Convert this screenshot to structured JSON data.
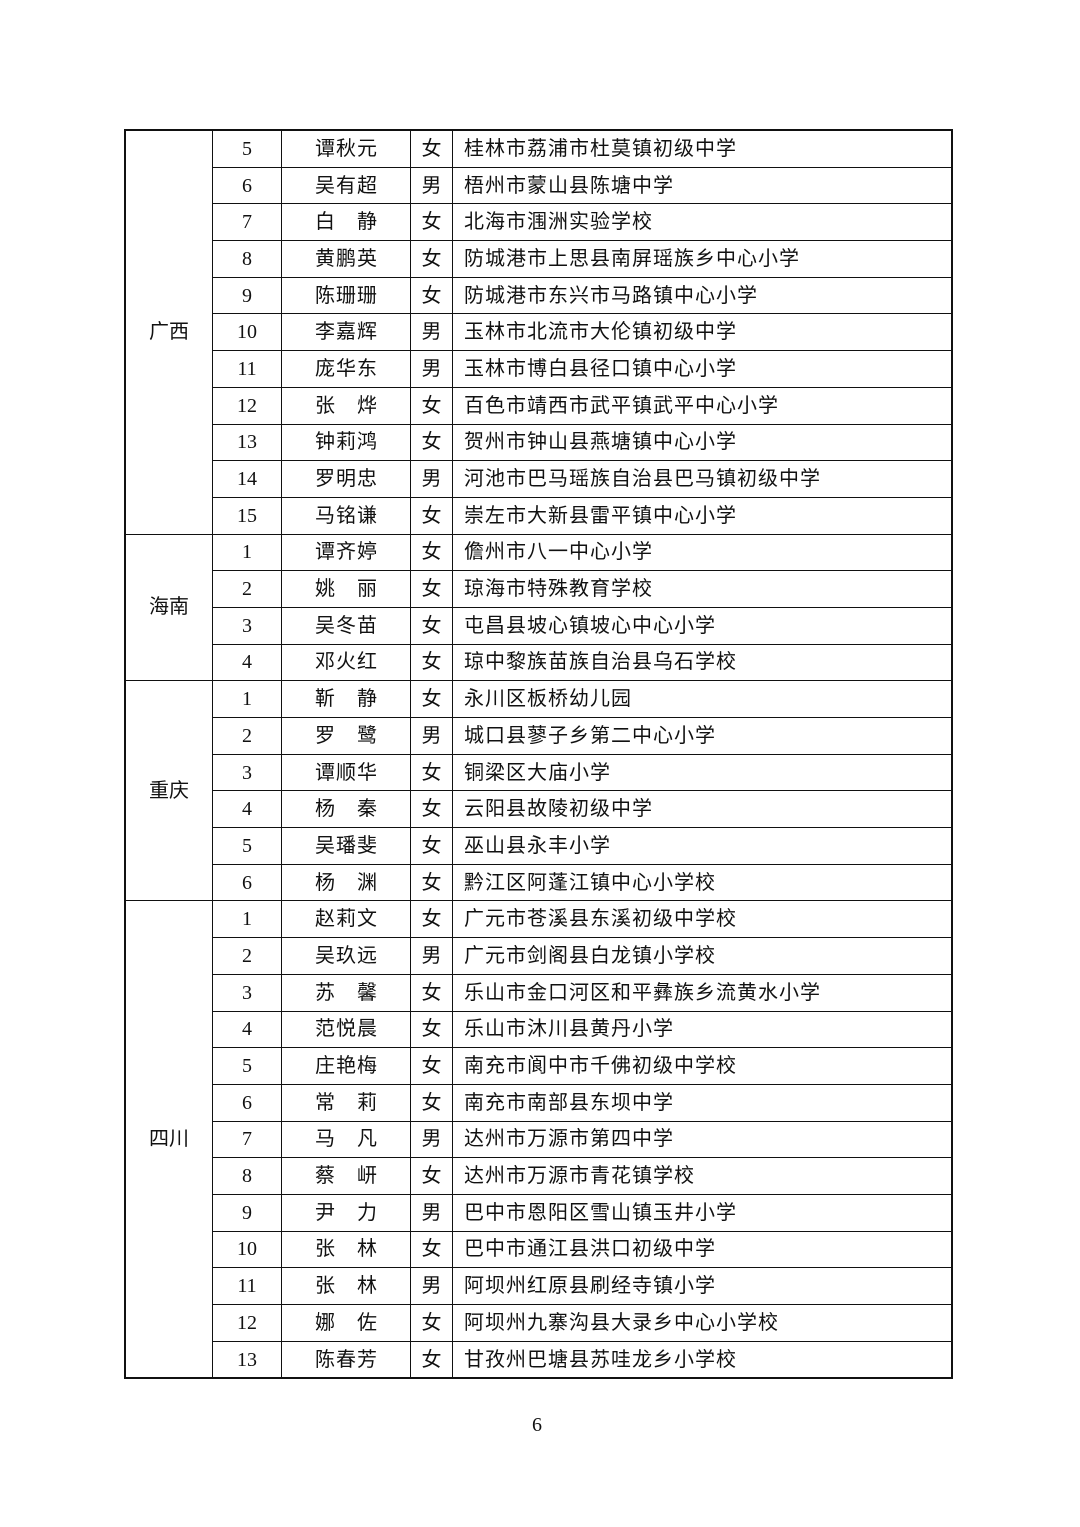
{
  "page_number": "6",
  "groups": [
    {
      "region": "广西",
      "rows": [
        [
          "5",
          "谭秋元",
          "女",
          "桂林市荔浦市杜莫镇初级中学"
        ],
        [
          "6",
          "吴有超",
          "男",
          "梧州市蒙山县陈塘中学"
        ],
        [
          "7",
          "白静",
          "女",
          "北海市涠洲实验学校"
        ],
        [
          "8",
          "黄鹏英",
          "女",
          "防城港市上思县南屏瑶族乡中心小学"
        ],
        [
          "9",
          "陈珊珊",
          "女",
          "防城港市东兴市马路镇中心小学"
        ],
        [
          "10",
          "李嘉辉",
          "男",
          "玉林市北流市大伦镇初级中学"
        ],
        [
          "11",
          "庞华东",
          "男",
          "玉林市博白县径口镇中心小学"
        ],
        [
          "12",
          "张烨",
          "女",
          "百色市靖西市武平镇武平中心小学"
        ],
        [
          "13",
          "钟莉鸿",
          "女",
          "贺州市钟山县燕塘镇中心小学"
        ],
        [
          "14",
          "罗明忠",
          "男",
          "河池市巴马瑶族自治县巴马镇初级中学"
        ],
        [
          "15",
          "马铭谦",
          "女",
          "崇左市大新县雷平镇中心小学"
        ]
      ]
    },
    {
      "region": "海南",
      "rows": [
        [
          "1",
          "谭齐婷",
          "女",
          "儋州市八一中心小学"
        ],
        [
          "2",
          "姚丽",
          "女",
          "琼海市特殊教育学校"
        ],
        [
          "3",
          "吴冬苗",
          "女",
          "屯昌县坡心镇坡心中心小学"
        ],
        [
          "4",
          "邓火红",
          "女",
          "琼中黎族苗族自治县乌石学校"
        ]
      ]
    },
    {
      "region": "重庆",
      "rows": [
        [
          "1",
          "靳静",
          "女",
          "永川区板桥幼儿园"
        ],
        [
          "2",
          "罗鹭",
          "男",
          "城口县蓼子乡第二中心小学"
        ],
        [
          "3",
          "谭顺华",
          "女",
          "铜梁区大庙小学"
        ],
        [
          "4",
          "杨秦",
          "女",
          "云阳县故陵初级中学"
        ],
        [
          "5",
          "吴璠斐",
          "女",
          "巫山县永丰小学"
        ],
        [
          "6",
          "杨渊",
          "女",
          "黔江区阿蓬江镇中心小学校"
        ]
      ]
    },
    {
      "region": "四川",
      "rows": [
        [
          "1",
          "赵莉文",
          "女",
          "广元市苍溪县东溪初级中学校"
        ],
        [
          "2",
          "吴玖远",
          "男",
          "广元市剑阁县白龙镇小学校"
        ],
        [
          "3",
          "苏馨",
          "女",
          "乐山市金口河区和平彝族乡流黄水小学"
        ],
        [
          "4",
          "范悦晨",
          "女",
          "乐山市沐川县黄丹小学"
        ],
        [
          "5",
          "庄艳梅",
          "女",
          "南充市阆中市千佛初级中学校"
        ],
        [
          "6",
          "常莉",
          "女",
          "南充市南部县东坝中学"
        ],
        [
          "7",
          "马凡",
          "男",
          "达州市万源市第四中学"
        ],
        [
          "8",
          "蔡岍",
          "女",
          "达州市万源市青花镇学校"
        ],
        [
          "9",
          "尹力",
          "男",
          "巴中市恩阳区雪山镇玉井小学"
        ],
        [
          "10",
          "张林",
          "女",
          "巴中市通江县洪口初级中学"
        ],
        [
          "11",
          "张林",
          "男",
          "阿坝州红原县刷经寺镇小学"
        ],
        [
          "12",
          "娜佐",
          "女",
          "阿坝州九寨沟县大录乡中心小学校"
        ],
        [
          "13",
          "陈春芳",
          "女",
          "甘孜州巴塘县苏哇龙乡小学校"
        ]
      ]
    }
  ]
}
